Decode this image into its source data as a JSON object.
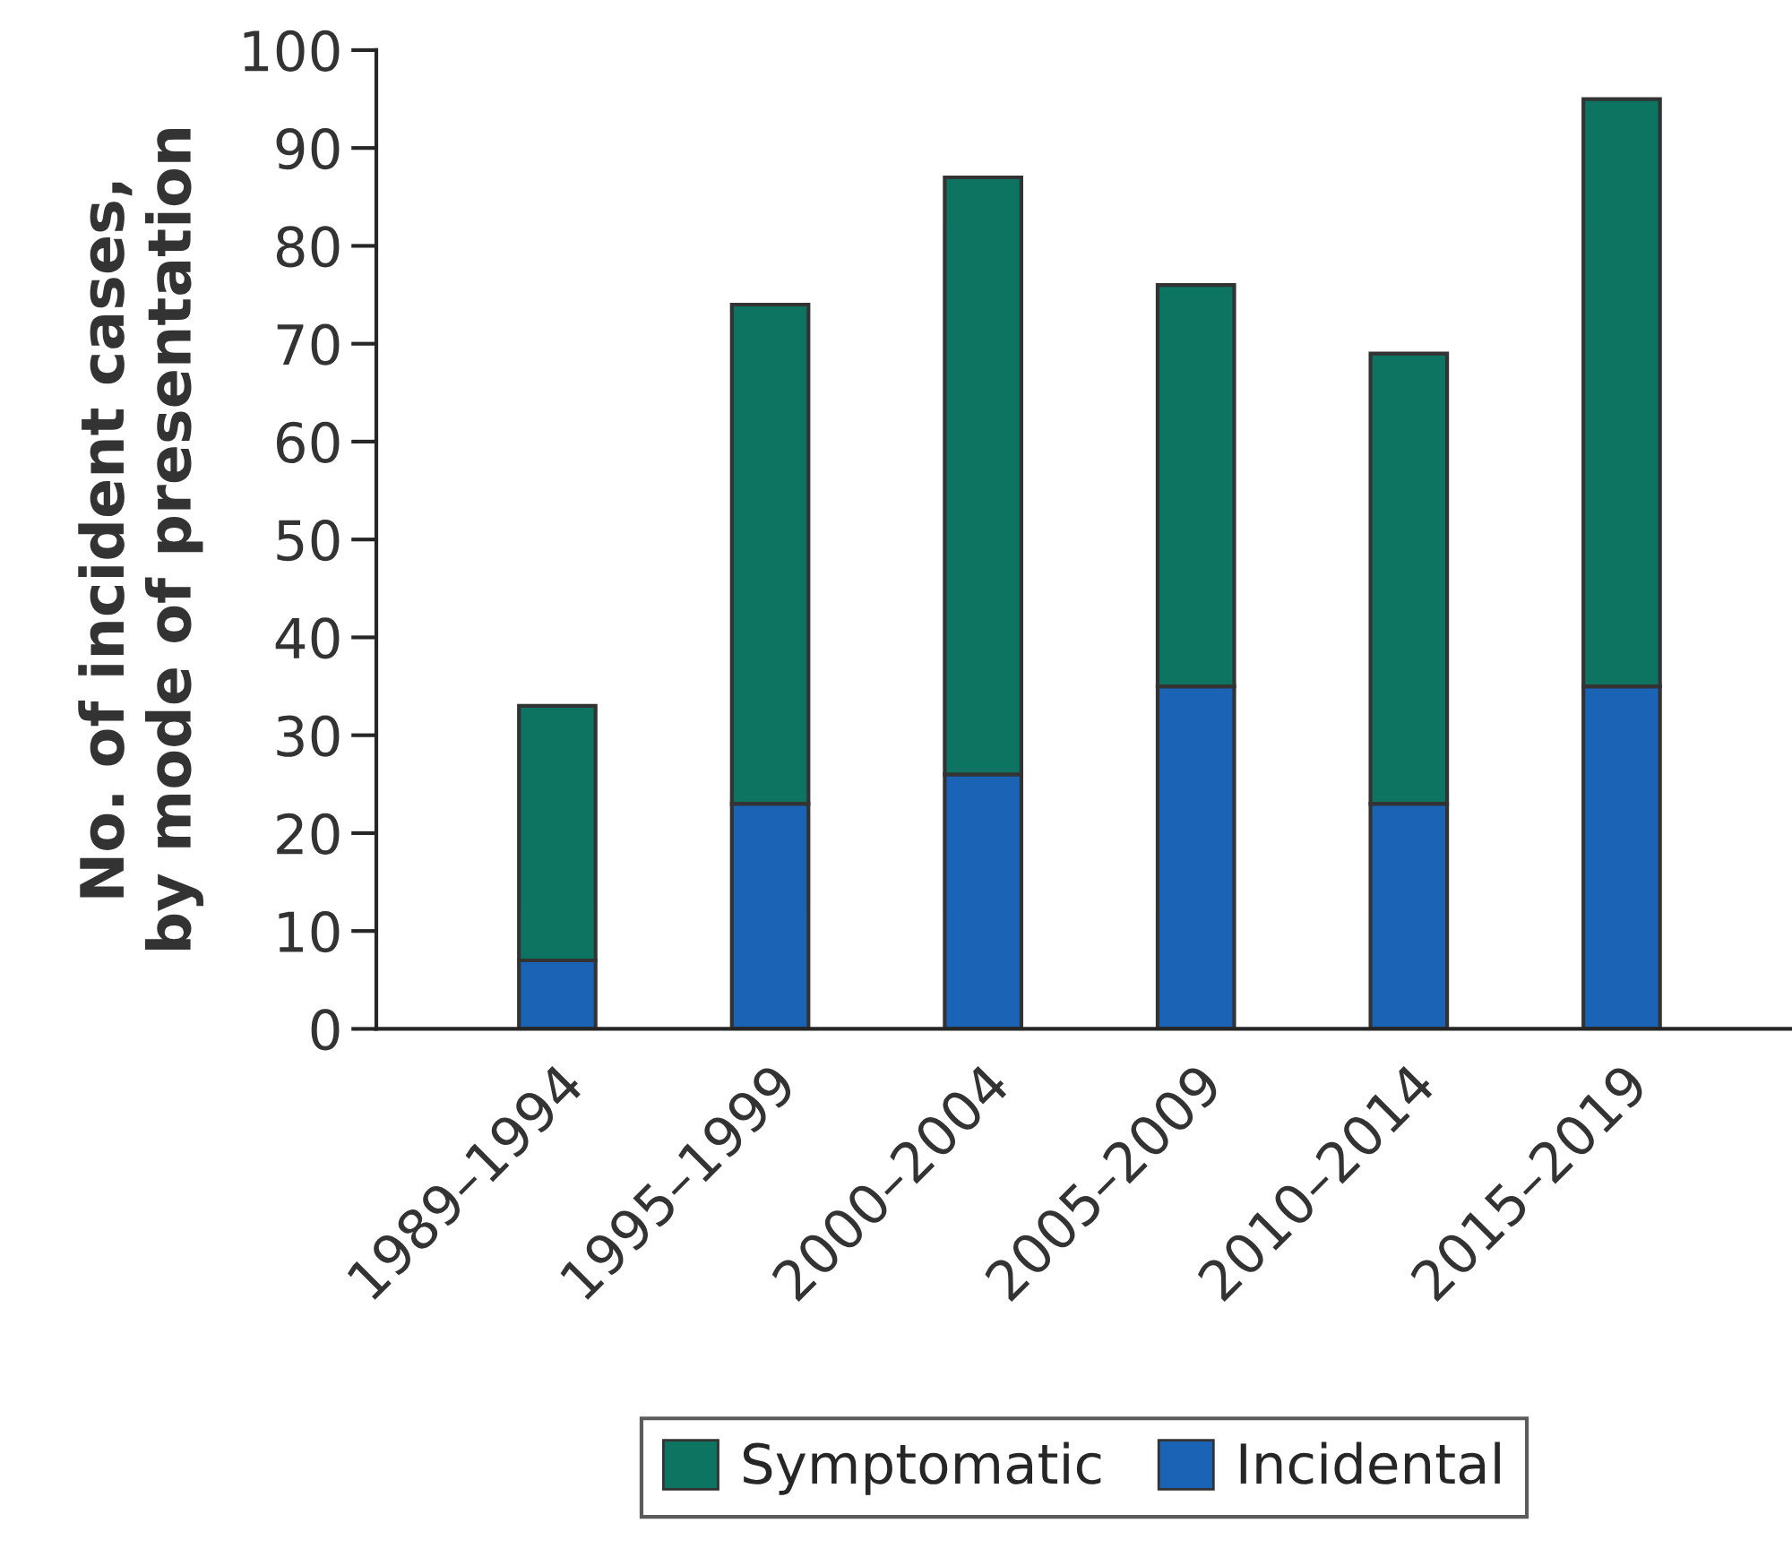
{
  "chart_data": {
    "type": "bar",
    "stacked": true,
    "ylabel": "No. of incident cases,\nby mode of presentation",
    "categories": [
      "1989–1994",
      "1995–1999",
      "2000–2004",
      "2005–2009",
      "2010–2014",
      "2015–2019"
    ],
    "series": [
      {
        "name": "Incidental",
        "color": "#1a63b5",
        "values": [
          7,
          23,
          26,
          35,
          23,
          35
        ]
      },
      {
        "name": "Symptomatic",
        "color": "#0e7462",
        "values": [
          26,
          51,
          61,
          41,
          46,
          60
        ]
      }
    ],
    "ylim": [
      0,
      100
    ],
    "yticks": [
      0,
      10,
      20,
      30,
      40,
      50,
      60,
      70,
      80,
      90,
      100
    ],
    "grid": false,
    "legend": "bottom"
  }
}
